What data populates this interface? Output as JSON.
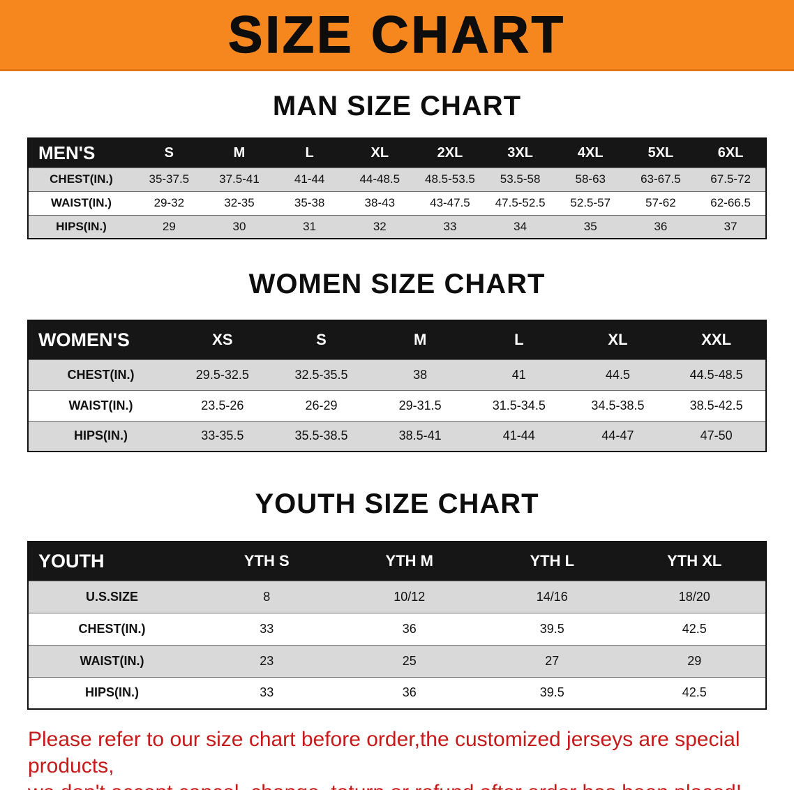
{
  "banner": {
    "title": "SIZE CHART",
    "bg_color": "#f6871f",
    "text_color": "#0d0d0d"
  },
  "sections": [
    {
      "heading": "MAN SIZE CHART",
      "table": {
        "header": [
          "MEN'S",
          "S",
          "M",
          "L",
          "XL",
          "2XL",
          "3XL",
          "4XL",
          "5XL",
          "6XL"
        ],
        "rows": [
          [
            "CHEST(IN.)",
            "35-37.5",
            "37.5-41",
            "41-44",
            "44-48.5",
            "48.5-53.5",
            "53.5-58",
            "58-63",
            "63-67.5",
            "67.5-72"
          ],
          [
            "WAIST(IN.)",
            "29-32",
            "32-35",
            "35-38",
            "38-43",
            "43-47.5",
            "47.5-52.5",
            "52.5-57",
            "57-62",
            "62-66.5"
          ],
          [
            "HIPS(IN.)",
            "29",
            "30",
            "31",
            "32",
            "33",
            "34",
            "35",
            "36",
            "37"
          ]
        ]
      }
    },
    {
      "heading": "WOMEN SIZE CHART",
      "table": {
        "header": [
          "WOMEN'S",
          "XS",
          "S",
          "M",
          "L",
          "XL",
          "XXL"
        ],
        "rows": [
          [
            "CHEST(IN.)",
            "29.5-32.5",
            "32.5-35.5",
            "38",
            "41",
            "44.5",
            "44.5-48.5"
          ],
          [
            "WAIST(IN.)",
            "23.5-26",
            "26-29",
            "29-31.5",
            "31.5-34.5",
            "34.5-38.5",
            "38.5-42.5"
          ],
          [
            "HIPS(IN.)",
            "33-35.5",
            "35.5-38.5",
            "38.5-41",
            "41-44",
            "44-47",
            "47-50"
          ]
        ]
      }
    },
    {
      "heading": "YOUTH SIZE CHART",
      "table": {
        "header": [
          "YOUTH",
          "YTH S",
          "YTH M",
          "YTH L",
          "YTH XL"
        ],
        "rows": [
          [
            "U.S.SIZE",
            "8",
            "10/12",
            "14/16",
            "18/20"
          ],
          [
            "CHEST(IN.)",
            "33",
            "36",
            "39.5",
            "42.5"
          ],
          [
            "WAIST(IN.)",
            "23",
            "25",
            "27",
            "29"
          ],
          [
            "HIPS(IN.)",
            "33",
            "36",
            "39.5",
            "42.5"
          ]
        ]
      }
    }
  ],
  "footer": {
    "line1": "Please refer to our size chart before order,the customized jerseys are special products,",
    "line2": "we don't accept cancel, change, teturn or refund after order has been placed!",
    "text_color": "#c61a1a"
  }
}
